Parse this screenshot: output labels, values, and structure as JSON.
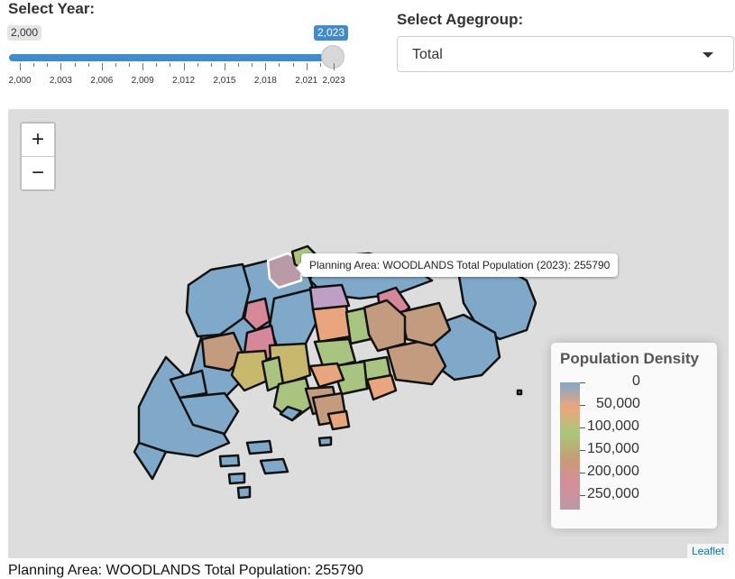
{
  "year_slider": {
    "label": "Select Year:",
    "min_label": "2,000",
    "max_label": "2,023",
    "ticks": [
      "2,000",
      "2,003",
      "2,006",
      "2,009",
      "2,012",
      "2,015",
      "2,018",
      "2,021",
      "2,023"
    ],
    "value_fraction": 1.0
  },
  "agegroup": {
    "label": "Select Agegroup:",
    "selected": "Total"
  },
  "map": {
    "zoom_in": "+",
    "zoom_out": "−",
    "tooltip": "Planning Area: WOODLANDS Total Population (2023): 255790",
    "attribution": "Leaflet",
    "legend": {
      "title": "Population Density",
      "labels": [
        "0",
        "50,000",
        "100,000",
        "150,000",
        "200,000",
        "250,000"
      ],
      "colors": [
        "#7fa8c9",
        "#eea57c",
        "#a8c77a",
        "#c69c74",
        "#d78e9c",
        "#bb9aa4"
      ]
    },
    "region_colors": {
      "blue": "#7fa8c9",
      "orange": "#e9a57d",
      "green": "#a9c480",
      "olive": "#c7b86d",
      "tan": "#c39b7f",
      "pink": "#d6879a",
      "mauve": "#b99aa7",
      "lilac": "#bfa0c4"
    }
  },
  "caption": "Planning Area: WOODLANDS Total Population: 255790"
}
